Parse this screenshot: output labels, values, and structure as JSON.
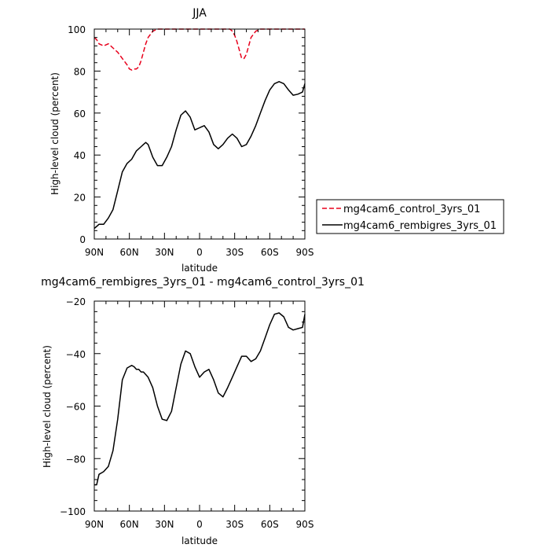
{
  "chart_data": [
    {
      "type": "line",
      "title": "JJA",
      "xlabel": "latitude",
      "ylabel": "High-level cloud (percent)",
      "xlim": [
        90,
        -90
      ],
      "ylim": [
        0,
        100
      ],
      "x_ticks": [
        90,
        60,
        30,
        0,
        -30,
        -60,
        -90
      ],
      "x_tick_labels": [
        "90N",
        "60N",
        "30N",
        "0",
        "30S",
        "60S",
        "90S"
      ],
      "y_ticks": [
        0,
        20,
        40,
        60,
        80,
        100
      ],
      "y_tick_labels": [
        "0",
        "20",
        "40",
        "60",
        "80",
        "100"
      ],
      "legend_position": "outside-right",
      "series": [
        {
          "name": "mg4cam6_control_3yrs_01",
          "color": "#e8001c",
          "dash": "dashed",
          "x": [
            90,
            88,
            86,
            82,
            78,
            74,
            70,
            66,
            62,
            60,
            58,
            56,
            54,
            52,
            50,
            48,
            46,
            44,
            40,
            36,
            30,
            20,
            10,
            0,
            -10,
            -20,
            -26,
            -28,
            -30,
            -32,
            -34,
            -36,
            -38,
            -40,
            -42,
            -44,
            -48,
            -52,
            -56,
            -60,
            -70,
            -80,
            -90
          ],
          "y": [
            96,
            95,
            93,
            92,
            93,
            91,
            89,
            86,
            83,
            81,
            80.5,
            81,
            81,
            82,
            85,
            89,
            93,
            96,
            99,
            100,
            100,
            100,
            100,
            100,
            100,
            100,
            100,
            99,
            97,
            94,
            90,
            86,
            86,
            88,
            92,
            96,
            99,
            100,
            100,
            100,
            100,
            100,
            100
          ]
        },
        {
          "name": "mg4cam6_rembigres_3yrs_01",
          "color": "#000000",
          "dash": "solid",
          "x": [
            90,
            88,
            86,
            82,
            78,
            74,
            70,
            66,
            62,
            58,
            54,
            50,
            48,
            46,
            44,
            42,
            40,
            36,
            32,
            28,
            24,
            20,
            16,
            12,
            8,
            4,
            0,
            -4,
            -8,
            -12,
            -16,
            -20,
            -24,
            -28,
            -32,
            -36,
            -40,
            -44,
            -48,
            -52,
            -56,
            -60,
            -64,
            -68,
            -72,
            -76,
            -80,
            -84,
            -88,
            -90
          ],
          "y": [
            5,
            6,
            7,
            7,
            10,
            14,
            23,
            32,
            36,
            38,
            42,
            44,
            45,
            46,
            45,
            42,
            39,
            35,
            35,
            39,
            44,
            52,
            59,
            61,
            58,
            52,
            53,
            54,
            51,
            45,
            43,
            45,
            48,
            50,
            48,
            44,
            45,
            49,
            54,
            60,
            66,
            71,
            74,
            75,
            74,
            71,
            68.5,
            69,
            70,
            74
          ]
        }
      ]
    },
    {
      "type": "line",
      "title": "mg4cam6_rembigres_3yrs_01 - mg4cam6_control_3yrs_01",
      "xlabel": "latitude",
      "ylabel": "High-level cloud (percent)",
      "xlim": [
        90,
        -90
      ],
      "ylim": [
        -100,
        -20
      ],
      "x_ticks": [
        90,
        60,
        30,
        0,
        -30,
        -60,
        -90
      ],
      "x_tick_labels": [
        "90N",
        "60N",
        "30N",
        "0",
        "30S",
        "60S",
        "90S"
      ],
      "y_ticks": [
        -100,
        -80,
        -60,
        -40,
        -20
      ],
      "y_tick_labels": [
        "−100",
        "−80",
        "−60",
        "−40",
        "−20"
      ],
      "series": [
        {
          "name": "",
          "color": "#000000",
          "dash": "solid",
          "x": [
            90,
            88,
            86,
            82,
            78,
            74,
            70,
            66,
            62,
            60,
            58,
            56,
            54,
            52,
            50,
            48,
            46,
            44,
            40,
            36,
            32,
            28,
            24,
            20,
            16,
            12,
            8,
            4,
            0,
            -4,
            -8,
            -12,
            -16,
            -20,
            -24,
            -28,
            -32,
            -36,
            -40,
            -44,
            -48,
            -52,
            -56,
            -60,
            -64,
            -68,
            -72,
            -76,
            -80,
            -84,
            -88,
            -90
          ],
          "y": [
            -90,
            -90,
            -86,
            -85,
            -83,
            -77,
            -65,
            -50,
            -45.5,
            -45,
            -44.5,
            -45,
            -46,
            -46,
            -47,
            -47,
            -48,
            -49,
            -53,
            -60,
            -65,
            -65.5,
            -62,
            -53,
            -44,
            -39,
            -40,
            -45,
            -49,
            -47,
            -46,
            -50,
            -55,
            -56.5,
            -53,
            -49,
            -45,
            -41,
            -41,
            -43,
            -42,
            -39,
            -34,
            -29,
            -25,
            -24.5,
            -26,
            -30,
            -31,
            -30.5,
            -30,
            -25
          ]
        }
      ]
    }
  ]
}
